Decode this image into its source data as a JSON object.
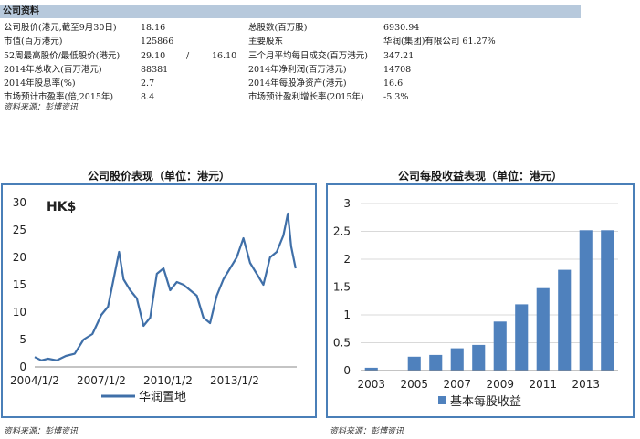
{
  "company_info": {
    "header": "公司资料",
    "rows": [
      {
        "l1": "公司股价(港元,截至9月30日)",
        "v1": "18.16",
        "l2": "总股数(百万股)",
        "v2": "6930.94"
      },
      {
        "l1": "市值(百万港元)",
        "v1": "125866",
        "l2": "主要股东",
        "v2": "华润(集团)有限公司 61.27%"
      },
      {
        "l1": "52周最高股价/最低股价(港元)",
        "v1": "29.10",
        "sep": "/",
        "v1b": "16.10",
        "l2": "三个月平均每日成交(百万港元)",
        "v2": "347.21"
      },
      {
        "l1": "2014年总收入(百万港元)",
        "v1": "88381",
        "l2": "2014年净利润(百万港元)",
        "v2": "14708"
      },
      {
        "l1": "2014年股息率(%)",
        "v1": "2.7",
        "l2": "2014年每股净资产(港元)",
        "v2": "16.6"
      },
      {
        "l1": "市场预计市盈率(倍,2015年)",
        "v1": "8.4",
        "l2": "市场预计盈利增长率(2015年)",
        "v2": "-5.3%"
      }
    ],
    "source": "资料来源：彭博资讯"
  },
  "chart_data": [
    {
      "type": "line",
      "title": "公司股价表现（单位：港元）",
      "unit_label": "HK$",
      "ylim": [
        0,
        30
      ],
      "y_ticks": [
        "0",
        "5",
        "10",
        "15",
        "20",
        "25",
        "30"
      ],
      "x_ticks": [
        "2004/1/2",
        "2007/1/2",
        "2010/1/2",
        "2013/1/2"
      ],
      "series": [
        {
          "name": "华润置地",
          "color": "#3f6fa8",
          "x": [
            2004.0,
            2004.3,
            2004.6,
            2005.0,
            2005.4,
            2005.8,
            2006.2,
            2006.6,
            2007.0,
            2007.3,
            2007.6,
            2007.8,
            2008.0,
            2008.3,
            2008.6,
            2008.9,
            2009.2,
            2009.5,
            2009.8,
            2010.1,
            2010.4,
            2010.7,
            2011.0,
            2011.3,
            2011.6,
            2011.9,
            2012.2,
            2012.5,
            2012.8,
            2013.1,
            2013.4,
            2013.7,
            2014.0,
            2014.3,
            2014.6,
            2014.9,
            2015.2,
            2015.4,
            2015.55,
            2015.75
          ],
          "y": [
            1.8,
            1.2,
            1.5,
            1.2,
            2.0,
            2.4,
            5.0,
            6.0,
            9.5,
            11.0,
            17.0,
            21.0,
            16.0,
            14.0,
            12.5,
            7.5,
            9.0,
            17.0,
            18.0,
            14.0,
            15.5,
            15.0,
            14.0,
            13.0,
            9.0,
            8.0,
            13.0,
            16.0,
            18.0,
            20.0,
            23.5,
            19.0,
            17.0,
            15.0,
            20.0,
            21.0,
            24.0,
            28.0,
            22.0,
            18.0
          ]
        }
      ]
    },
    {
      "type": "bar",
      "title": "公司每股收益表现（单位：港元）",
      "ylim": [
        0,
        3
      ],
      "y_ticks": [
        "0",
        "0.5",
        "1",
        "1.5",
        "2",
        "2.5",
        "3"
      ],
      "x_ticks": [
        "2003",
        "2005",
        "2007",
        "2009",
        "2011",
        "2013"
      ],
      "categories": [
        "2003",
        "2004",
        "2005",
        "2006",
        "2007",
        "2008",
        "2009",
        "2010",
        "2011",
        "2012",
        "2013",
        "2014"
      ],
      "series": [
        {
          "name": "基本每股收益",
          "color": "#4f81bd",
          "values": [
            0.05,
            0,
            0.25,
            0.28,
            0.4,
            0.46,
            0.88,
            1.19,
            1.48,
            1.81,
            2.52,
            2.52
          ]
        }
      ]
    }
  ],
  "sources": {
    "left": "资料来源：彭博资讯",
    "right": "资料来源：彭博资讯"
  }
}
